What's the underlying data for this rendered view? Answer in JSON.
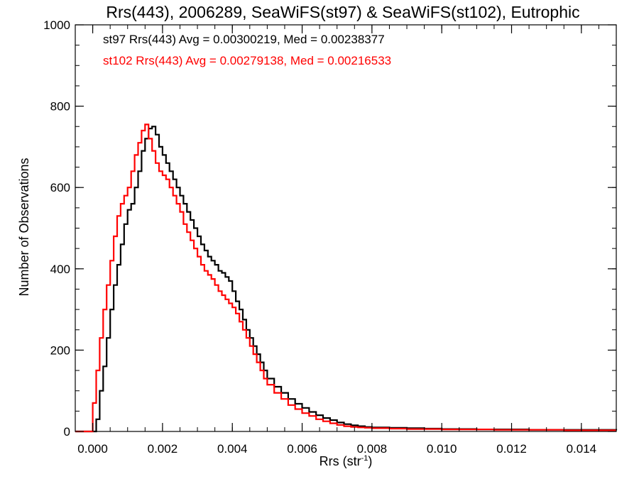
{
  "chart_data": {
    "type": "line",
    "step": true,
    "title": "Rrs(443), 2006289, SeaWiFS(st97) & SeaWiFS(st102), Eutrophic",
    "xlabel": "Rrs (str",
    "xlabel_sup": "-1",
    "xlabel_suffix": ")",
    "ylabel": "Number of Observations",
    "xlim": [
      -0.0005,
      0.015
    ],
    "ylim": [
      0,
      1000
    ],
    "xticks": [
      0.0,
      0.002,
      0.004,
      0.006,
      0.008,
      0.01,
      0.012,
      0.014
    ],
    "xtick_labels": [
      "0.000",
      "0.002",
      "0.004",
      "0.006",
      "0.008",
      "0.010",
      "0.012",
      "0.014"
    ],
    "yticks": [
      0,
      200,
      400,
      600,
      800,
      1000
    ],
    "ytick_labels": [
      "0",
      "200",
      "400",
      "600",
      "800",
      "1000"
    ],
    "grid": false,
    "annotations": [
      {
        "text": "st97 Rrs(443) Avg = 0.00300219, Med = 0.00238377",
        "color": "#000000"
      },
      {
        "text": "st102 Rrs(443) Avg = 0.00279138, Med = 0.00216533",
        "color": "#ff0000"
      }
    ],
    "series": [
      {
        "color": "#000000",
        "x": [
          -0.0005,
          0.0,
          0.0001,
          0.0002,
          0.0003,
          0.0004,
          0.0005,
          0.0006,
          0.0007,
          0.0008,
          0.0009,
          0.001,
          0.0011,
          0.0012,
          0.0013,
          0.0014,
          0.0015,
          0.0016,
          0.0017,
          0.0018,
          0.0019,
          0.002,
          0.0021,
          0.0022,
          0.0023,
          0.0024,
          0.0025,
          0.0026,
          0.0027,
          0.0028,
          0.0029,
          0.003,
          0.0031,
          0.0032,
          0.0033,
          0.0034,
          0.0035,
          0.0036,
          0.0037,
          0.0038,
          0.0039,
          0.004,
          0.0041,
          0.0042,
          0.0043,
          0.0044,
          0.0045,
          0.0046,
          0.0047,
          0.0048,
          0.0049,
          0.005,
          0.0052,
          0.0054,
          0.0056,
          0.0058,
          0.006,
          0.0062,
          0.0064,
          0.0066,
          0.0068,
          0.007,
          0.0072,
          0.0074,
          0.0076,
          0.0078,
          0.008,
          0.0085,
          0.009,
          0.0095,
          0.01,
          0.0105,
          0.011,
          0.0115,
          0.012,
          0.0125,
          0.013,
          0.0135,
          0.014,
          0.0145,
          0.015
        ],
        "y": [
          0,
          0,
          30,
          100,
          160,
          230,
          300,
          360,
          410,
          460,
          510,
          545,
          560,
          600,
          640,
          690,
          720,
          745,
          750,
          730,
          700,
          680,
          660,
          640,
          620,
          600,
          580,
          560,
          540,
          520,
          500,
          480,
          460,
          445,
          430,
          420,
          410,
          395,
          390,
          380,
          370,
          345,
          320,
          300,
          275,
          250,
          230,
          210,
          190,
          170,
          150,
          130,
          110,
          95,
          80,
          68,
          58,
          48,
          40,
          33,
          28,
          22,
          18,
          15,
          13,
          11,
          10,
          9,
          8,
          7,
          6,
          6,
          5,
          5,
          5,
          4,
          4,
          4,
          4,
          4,
          3
        ]
      },
      {
        "color": "#ff0000",
        "x": [
          -0.0005,
          -0.0001,
          0.0,
          0.0001,
          0.0002,
          0.0003,
          0.0004,
          0.0005,
          0.0006,
          0.0007,
          0.0008,
          0.0009,
          0.001,
          0.0011,
          0.0012,
          0.0013,
          0.0014,
          0.0015,
          0.0016,
          0.0017,
          0.0018,
          0.0019,
          0.002,
          0.0021,
          0.0022,
          0.0023,
          0.0024,
          0.0025,
          0.0026,
          0.0027,
          0.0028,
          0.0029,
          0.003,
          0.0031,
          0.0032,
          0.0033,
          0.0034,
          0.0035,
          0.0036,
          0.0037,
          0.0038,
          0.0039,
          0.004,
          0.0041,
          0.0042,
          0.0043,
          0.0044,
          0.0045,
          0.0046,
          0.0047,
          0.0048,
          0.0049,
          0.005,
          0.0052,
          0.0054,
          0.0056,
          0.0058,
          0.006,
          0.0062,
          0.0064,
          0.0066,
          0.0068,
          0.007,
          0.0072,
          0.0074,
          0.0076,
          0.0078,
          0.008,
          0.0085,
          0.009,
          0.0095,
          0.01,
          0.0105,
          0.011,
          0.0115,
          0.012,
          0.0125,
          0.013,
          0.0135,
          0.014,
          0.0145,
          0.015
        ],
        "y": [
          0,
          0,
          70,
          150,
          230,
          300,
          360,
          420,
          480,
          530,
          560,
          580,
          600,
          640,
          680,
          710,
          740,
          755,
          720,
          690,
          660,
          640,
          630,
          620,
          600,
          580,
          560,
          540,
          510,
          490,
          470,
          450,
          430,
          410,
          395,
          385,
          375,
          360,
          345,
          335,
          325,
          315,
          305,
          290,
          270,
          250,
          230,
          210,
          190,
          170,
          150,
          130,
          115,
          95,
          80,
          65,
          55,
          45,
          38,
          30,
          25,
          20,
          16,
          13,
          11,
          10,
          9,
          8,
          7,
          6,
          6,
          5,
          5,
          5,
          4,
          4,
          4,
          4,
          3,
          3,
          3,
          3
        ]
      }
    ]
  }
}
